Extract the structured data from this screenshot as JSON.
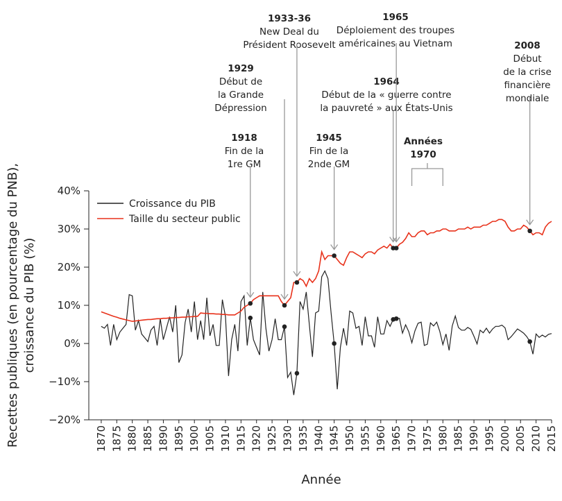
{
  "chart_data": {
    "type": "line",
    "xlabel": "Année",
    "ylabel": [
      "Recettes publiques (en pourcentage du PNB),",
      "croissance du PIB (%)"
    ],
    "x": [
      1870,
      1871,
      1872,
      1873,
      1874,
      1875,
      1876,
      1877,
      1878,
      1879,
      1880,
      1881,
      1882,
      1883,
      1884,
      1885,
      1886,
      1887,
      1888,
      1889,
      1890,
      1891,
      1892,
      1893,
      1894,
      1895,
      1896,
      1897,
      1898,
      1899,
      1900,
      1901,
      1902,
      1903,
      1904,
      1905,
      1906,
      1907,
      1908,
      1909,
      1910,
      1911,
      1912,
      1913,
      1914,
      1915,
      1916,
      1917,
      1918,
      1919,
      1920,
      1921,
      1922,
      1923,
      1924,
      1925,
      1926,
      1927,
      1928,
      1929,
      1930,
      1931,
      1932,
      1933,
      1934,
      1935,
      1936,
      1937,
      1938,
      1939,
      1940,
      1941,
      1942,
      1943,
      1944,
      1945,
      1946,
      1947,
      1948,
      1949,
      1950,
      1951,
      1952,
      1953,
      1954,
      1955,
      1956,
      1957,
      1958,
      1959,
      1960,
      1961,
      1962,
      1963,
      1964,
      1965,
      1966,
      1967,
      1968,
      1969,
      1970,
      1971,
      1972,
      1973,
      1974,
      1975,
      1976,
      1977,
      1978,
      1979,
      1980,
      1981,
      1982,
      1983,
      1984,
      1985,
      1986,
      1987,
      1988,
      1989,
      1990,
      1991,
      1992,
      1993,
      1994,
      1995,
      1996,
      1997,
      1998,
      1999,
      2000,
      2001,
      2002,
      2003,
      2004,
      2005,
      2006,
      2007,
      2008,
      2009,
      2010,
      2011,
      2012,
      2013,
      2014,
      2015
    ],
    "series": [
      {
        "name": "Croissance du PIB",
        "color": "#222222",
        "values": [
          4.5,
          4,
          5,
          -0.5,
          5,
          1,
          3,
          4,
          5,
          12.8,
          12.5,
          3.5,
          6,
          2.5,
          1.5,
          0.5,
          3.5,
          4.5,
          -0.5,
          6.5,
          1,
          4,
          7,
          3,
          10,
          -5,
          -3,
          5.5,
          9,
          3,
          11,
          1,
          6,
          1,
          12,
          2,
          5,
          -0.5,
          -0.5,
          11.5,
          7,
          -8.5,
          1,
          5,
          -2,
          11,
          12.5,
          -0.5,
          6.7,
          1,
          -1,
          -3,
          13.5,
          4,
          -2,
          1,
          6.5,
          1,
          1,
          4.4,
          -8.9,
          -7.5,
          -13.5,
          -7.8,
          11,
          9,
          13.5,
          5,
          -3.5,
          8,
          8.5,
          17.5,
          19,
          17,
          8,
          0,
          -12,
          -1,
          4,
          -0.5,
          8.5,
          8,
          4,
          4.5,
          -0.5,
          7,
          2,
          2,
          -1,
          7,
          2.5,
          2.5,
          6,
          4.5,
          6.3,
          6.5,
          6.6,
          2.7,
          4.9,
          3.1,
          0.2,
          3.3,
          5.3,
          5.6,
          -0.5,
          -0.2,
          5.4,
          4.6,
          5.6,
          3.2,
          -0.3,
          2.5,
          -1.8,
          4.6,
          7.2,
          4.2,
          3.5,
          3.5,
          4.2,
          3.7,
          1.9,
          -0.1,
          3.5,
          2.8,
          4,
          2.7,
          3.8,
          4.5,
          4.5,
          4.8,
          4.1,
          1,
          1.8,
          2.8,
          3.8,
          3.3,
          2.7,
          1.8,
          0.5,
          -2.8,
          2.5,
          1.6,
          2.2,
          1.7,
          2.4,
          2.6
        ]
      },
      {
        "name": "Taille du secteur public",
        "color": "#e8311a",
        "values": [
          8.3,
          8,
          7.7,
          7.4,
          7.1,
          6.9,
          6.6,
          6.4,
          6.2,
          6,
          5.8,
          5.9,
          6,
          6.1,
          6.2,
          6.3,
          6.3,
          6.4,
          6.5,
          6.5,
          6.6,
          6.6,
          6.7,
          6.7,
          6.8,
          6.8,
          6.9,
          6.9,
          7,
          7,
          7.1,
          7.1,
          8,
          7.9,
          7.9,
          7.8,
          7.8,
          7.7,
          7.7,
          7.6,
          7.6,
          7.5,
          7.5,
          7.5,
          8,
          8.5,
          9.5,
          10,
          10.5,
          11.5,
          12,
          12.5,
          12.5,
          12.5,
          12.5,
          12.5,
          12.5,
          12.5,
          11,
          10,
          11,
          12,
          16,
          16,
          17,
          16.5,
          15,
          17,
          16,
          17,
          19,
          24,
          22,
          23,
          23,
          23,
          22,
          21,
          20.5,
          22.5,
          24,
          24,
          23.5,
          23,
          22.5,
          23.5,
          24,
          24,
          23.5,
          24.5,
          25,
          25.5,
          25,
          26,
          25,
          25,
          26,
          26.5,
          27.5,
          29,
          28,
          28,
          29,
          29.5,
          29.5,
          28.5,
          29,
          29,
          29.5,
          29.5,
          30,
          30,
          29.5,
          29.5,
          29.5,
          30,
          30,
          30,
          30.5,
          30,
          30.5,
          30.5,
          30.5,
          31,
          31,
          31.5,
          32,
          32,
          32.5,
          32.5,
          32,
          30.5,
          29.5,
          29.5,
          30,
          30,
          31,
          30.5,
          29.5,
          28.5,
          29,
          29,
          28.5,
          30.5,
          31.5,
          32
        ]
      }
    ],
    "xlim": [
      1866,
      2015
    ],
    "xticks": [
      1870,
      1875,
      1880,
      1885,
      1890,
      1895,
      1900,
      1905,
      1910,
      1915,
      1920,
      1925,
      1930,
      1935,
      1940,
      1945,
      1950,
      1955,
      1960,
      1965,
      1970,
      1975,
      1980,
      1985,
      1990,
      1995,
      2000,
      2005,
      2010,
      2015
    ],
    "ylim": [
      -20,
      40
    ],
    "yticks": [
      {
        "value": -20,
        "label": "−20%"
      },
      {
        "value": -10,
        "label": "−10%"
      },
      {
        "value": 0,
        "label": "0%"
      },
      {
        "value": 10,
        "label": "10%"
      },
      {
        "value": 20,
        "label": "20%"
      },
      {
        "value": 30,
        "label": "30%"
      },
      {
        "value": 40,
        "label": "40%"
      }
    ],
    "legend": "upper left",
    "annotations": [
      {
        "x": 1918,
        "title": [
          "1918"
        ],
        "lines": [
          "Fin de la",
          "1re GM"
        ]
      },
      {
        "x": 1929,
        "title": [
          "1929"
        ],
        "lines": [
          "Début de",
          "la Grande",
          "Dépression"
        ]
      },
      {
        "x": 1933,
        "title": [
          "1933-36"
        ],
        "lines": [
          "New Deal du",
          "Président Roosevelt"
        ]
      },
      {
        "x": 1945,
        "title": [
          "1945"
        ],
        "lines": [
          "Fin de la",
          "2nde GM"
        ]
      },
      {
        "x": 1964,
        "title": [
          "1964"
        ],
        "lines": [
          "Début de la « guerre contre",
          "la pauvreté » aux États-Unis"
        ]
      },
      {
        "x": 1965,
        "title": [
          "1965"
        ],
        "lines": [
          "Déploiement des troupes",
          "américaines au Vietnam"
        ]
      },
      {
        "x": 2008,
        "title": [
          "2008"
        ],
        "lines": [
          "Début",
          "de la crise",
          "financière",
          "mondiale"
        ]
      },
      {
        "span": [
          1970,
          1980
        ],
        "title": [
          "Années",
          "1970"
        ],
        "lines": []
      }
    ]
  }
}
